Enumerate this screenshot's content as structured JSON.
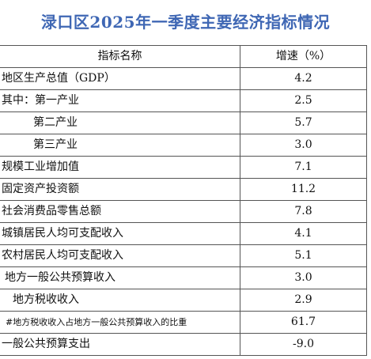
{
  "title": "渌口区2025年一季度主要经济指标情况",
  "table": {
    "headers": [
      "指标名称",
      "增速（%）"
    ],
    "rows": [
      {
        "name": "地区生产总值（GDP）",
        "value": "4.2"
      },
      {
        "name": "其中：第一产业",
        "value": "2.5"
      },
      {
        "name": "第二产业",
        "value": "5.7"
      },
      {
        "name": "第三产业",
        "value": "3.0"
      },
      {
        "name": "规模工业增加值",
        "value": "7.1"
      },
      {
        "name": "固定资产投资额",
        "value": "11.2"
      },
      {
        "name": "社会消费品零售总额",
        "value": "7.8"
      },
      {
        "name": "城镇居民人均可支配收入",
        "value": "4.1"
      },
      {
        "name": "农村居民人均可支配收入",
        "value": "5.1"
      },
      {
        "name": "地方一般公共预算收入",
        "value": "3.0"
      },
      {
        "name": "地方税收收入",
        "value": "2.9"
      },
      {
        "name": "#地方税收收入占地方一般公共预算收入的比重",
        "value": "61.7"
      },
      {
        "name": "一般公共预算支出",
        "value": "-9.0"
      }
    ]
  }
}
